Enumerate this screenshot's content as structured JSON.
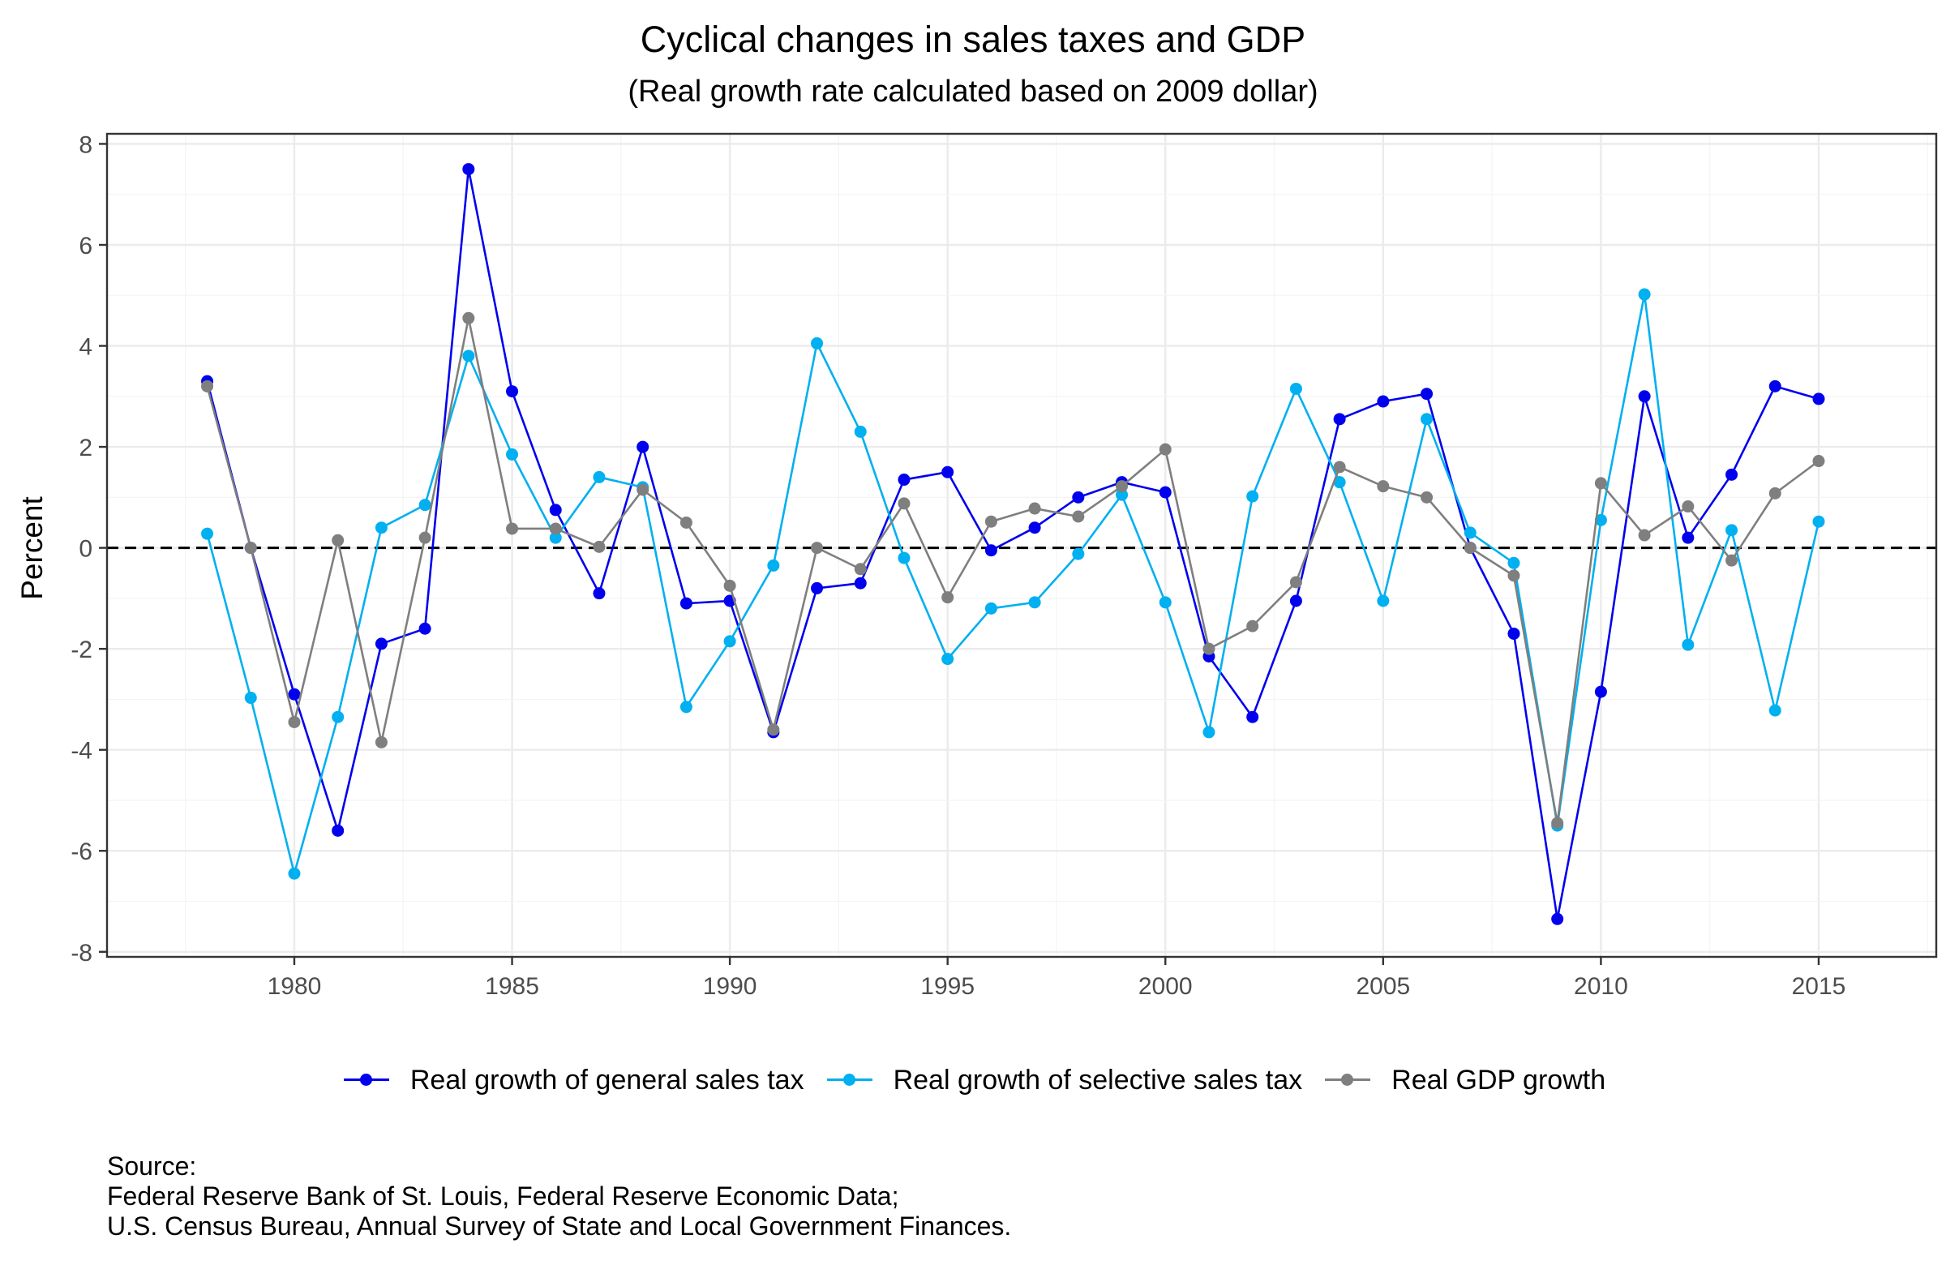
{
  "chart_data": {
    "type": "line",
    "title": "Cyclical changes in sales taxes and GDP",
    "subtitle": "(Real growth rate calculated based on 2009 dollar)",
    "xlabel": "",
    "ylabel": "Percent",
    "xlim": [
      1975.7,
      2017.7
    ],
    "ylim": [
      -8.1,
      8.2
    ],
    "x_ticks": [
      1980,
      1985,
      1990,
      1995,
      2000,
      2005,
      2010,
      2015
    ],
    "y_ticks": [
      -8,
      -6,
      -4,
      -2,
      0,
      2,
      4,
      6,
      8
    ],
    "grid": true,
    "reference_line": {
      "y": 0,
      "style": "dashed"
    },
    "legend_position": "bottom",
    "x": [
      1978,
      1979,
      1980,
      1981,
      1982,
      1983,
      1984,
      1985,
      1986,
      1987,
      1988,
      1989,
      1990,
      1991,
      1992,
      1993,
      1994,
      1995,
      1996,
      1997,
      1998,
      1999,
      2000,
      2001,
      2002,
      2003,
      2004,
      2005,
      2006,
      2007,
      2008,
      2009,
      2010,
      2011,
      2012,
      2013,
      2014,
      2015
    ],
    "series": [
      {
        "name": "Real growth of general sales tax",
        "color": "#0000ee",
        "values": [
          3.3,
          0.0,
          -2.9,
          -5.6,
          -1.9,
          -1.6,
          7.5,
          3.1,
          0.75,
          -0.9,
          2.0,
          -1.1,
          -1.05,
          -3.65,
          -0.8,
          -0.7,
          1.35,
          1.5,
          -0.05,
          0.4,
          1.0,
          1.3,
          1.1,
          -2.15,
          -3.35,
          -1.05,
          2.55,
          2.9,
          3.05,
          0.0,
          -1.7,
          -7.35,
          -2.85,
          3.0,
          0.2,
          1.45,
          3.2,
          2.95
        ]
      },
      {
        "name": "Real growth of selective sales tax",
        "color": "#00b0f0",
        "values": [
          0.28,
          -2.97,
          -6.45,
          -3.35,
          0.4,
          0.85,
          3.8,
          1.85,
          0.2,
          1.4,
          1.2,
          -3.15,
          -1.85,
          -0.35,
          4.05,
          2.3,
          -0.2,
          -2.2,
          -1.2,
          -1.08,
          -0.12,
          1.05,
          -1.08,
          -3.65,
          1.02,
          3.15,
          1.3,
          -1.05,
          2.55,
          0.3,
          -0.3,
          -5.5,
          0.55,
          5.02,
          -1.92,
          0.35,
          -3.22,
          0.52
        ]
      },
      {
        "name": "Real GDP growth",
        "color": "#7f7f7f",
        "values": [
          3.2,
          0.0,
          -3.45,
          0.15,
          -3.85,
          0.2,
          4.55,
          0.38,
          0.38,
          0.02,
          1.15,
          0.5,
          -0.75,
          -3.6,
          0.0,
          -0.42,
          0.88,
          -0.98,
          0.52,
          0.78,
          0.62,
          1.22,
          1.95,
          -2.0,
          -1.55,
          -0.68,
          1.6,
          1.22,
          1.0,
          0.0,
          -0.55,
          -5.45,
          1.28,
          0.25,
          0.82,
          -0.25,
          1.08,
          1.72
        ]
      }
    ]
  },
  "source_lines": [
    "Source:",
    "Federal Reserve Bank of St. Louis, Federal Reserve Economic Data;",
    "U.S. Census Bureau, Annual Survey of State and Local Government Finances."
  ]
}
